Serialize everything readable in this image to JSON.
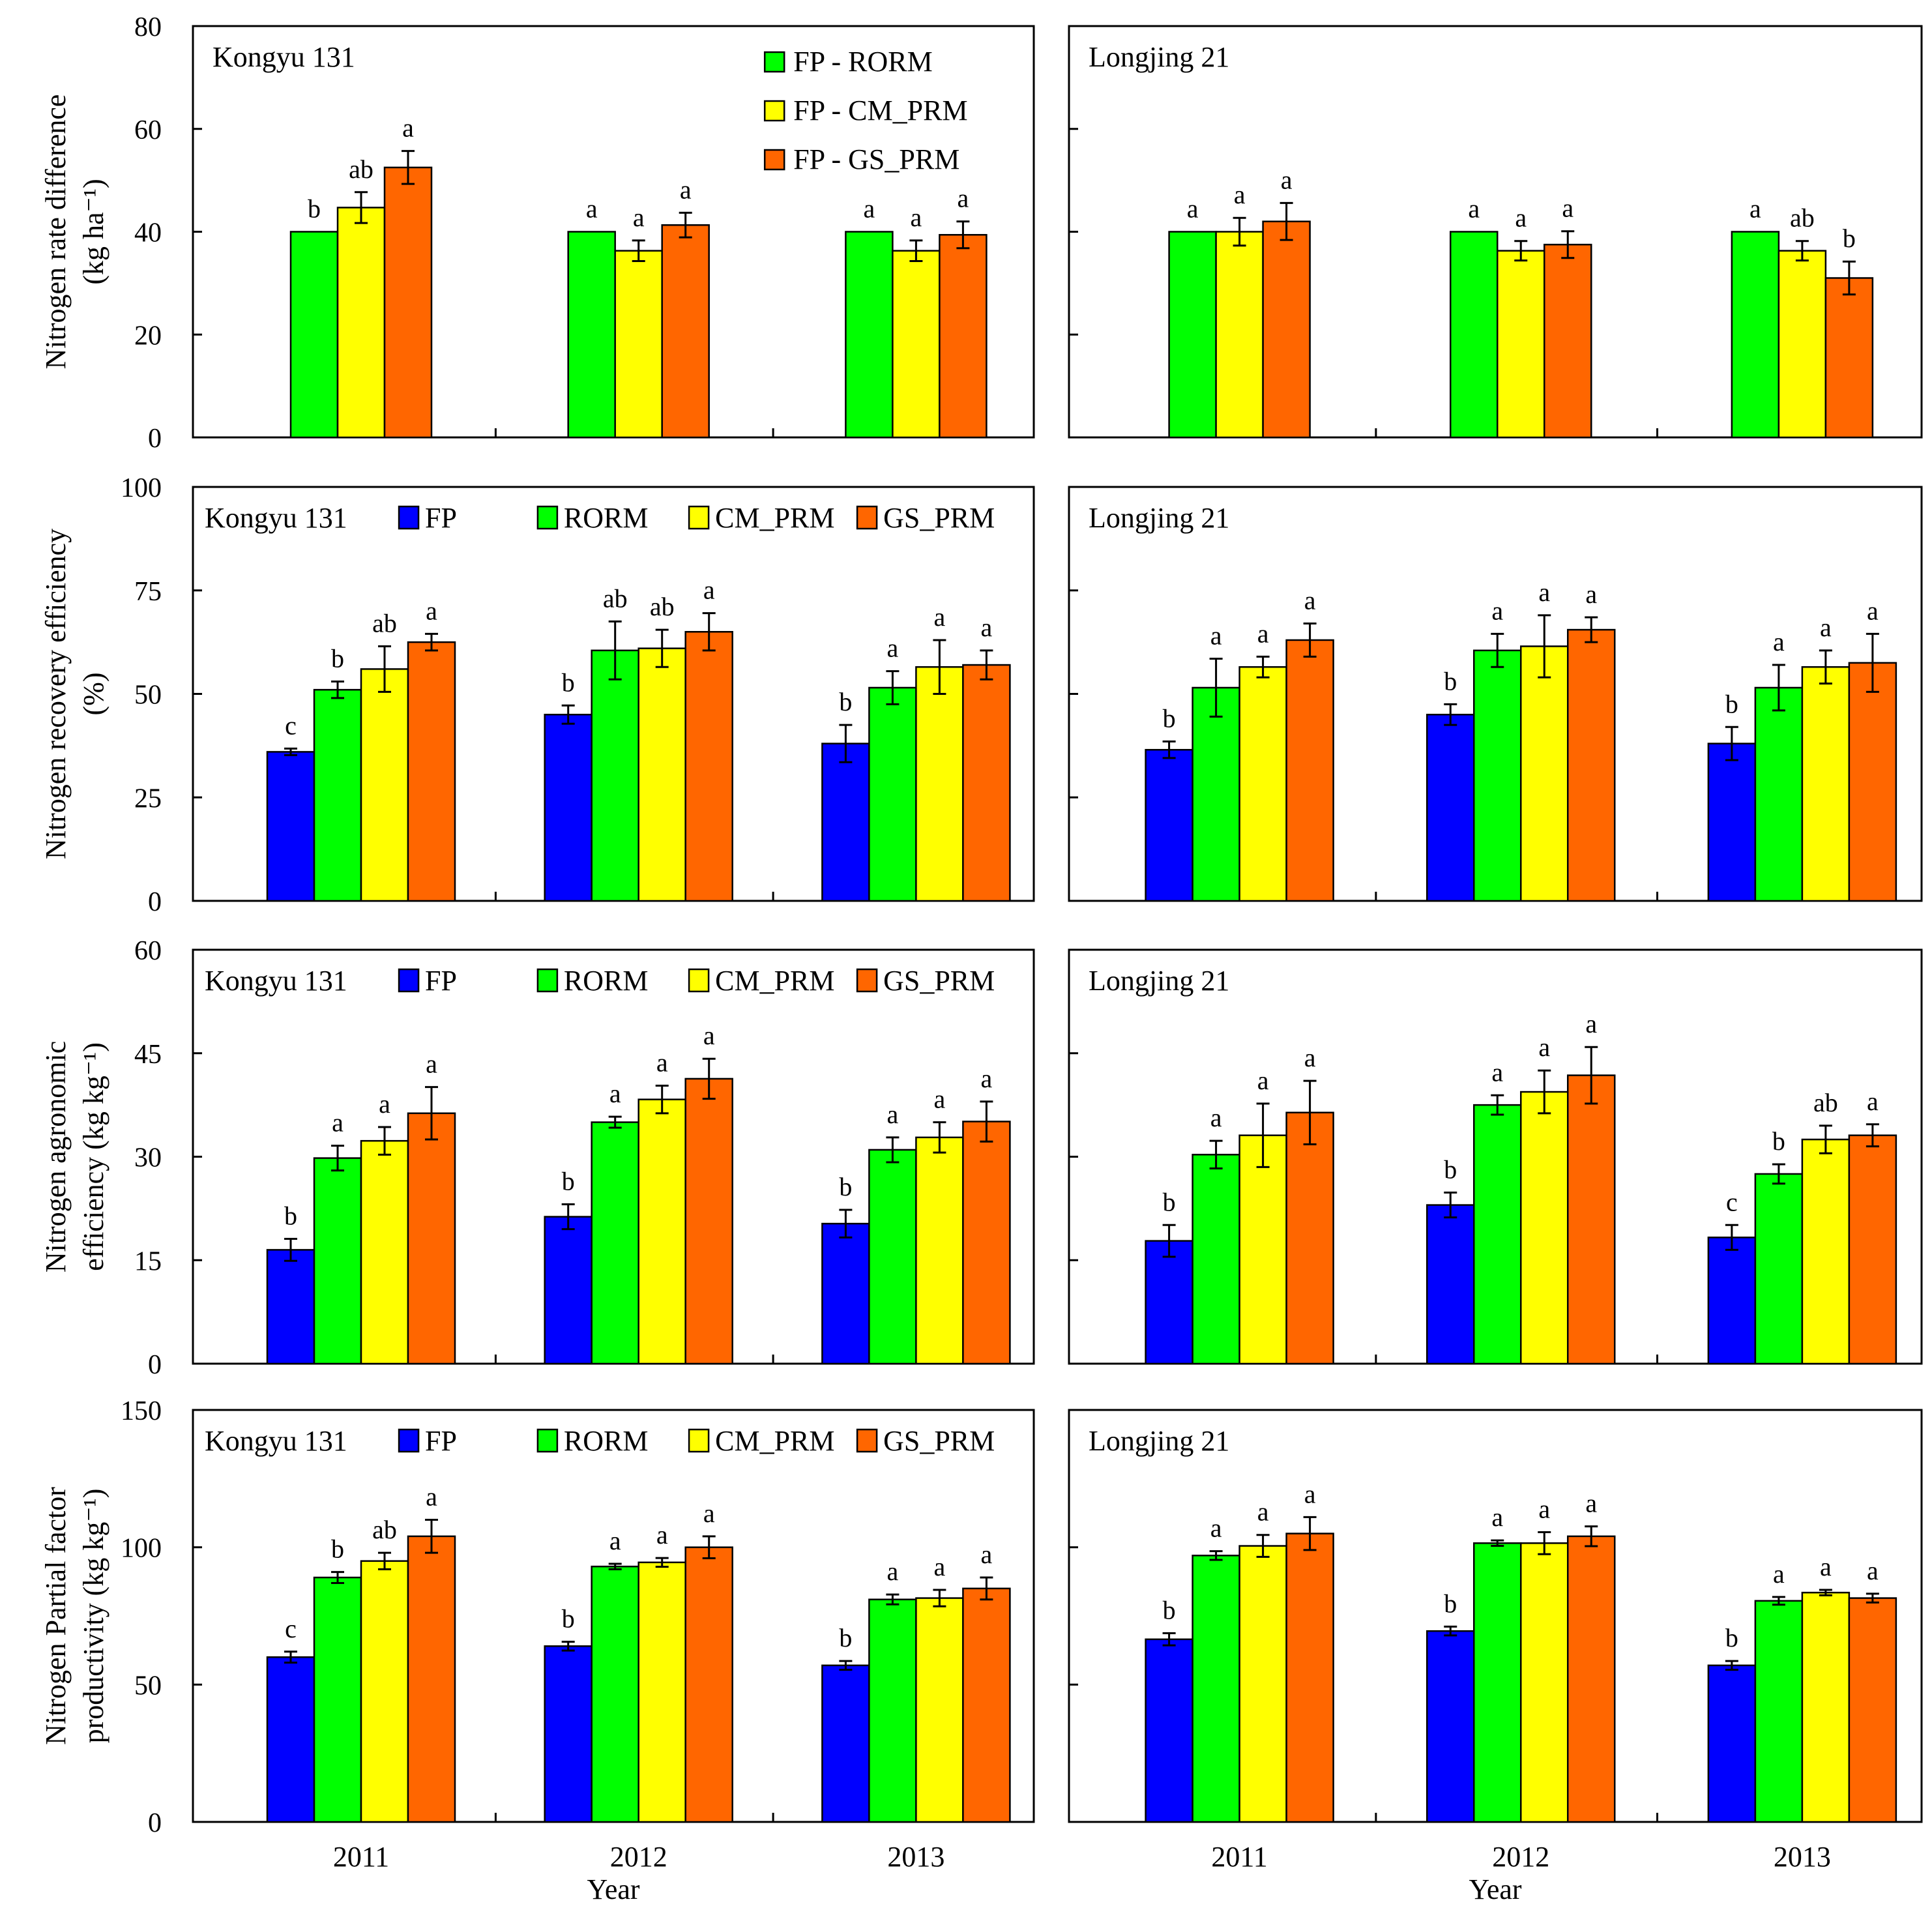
{
  "colors": {
    "FP": "#0000FF",
    "RORM": "#00FF00",
    "CM_PRM": "#FFFF00",
    "GS_PRM": "#FF6600",
    "FP - RORM": "#00FF00",
    "FP - CM_PRM": "#FFFF00",
    "FP - GS_PRM": "#FF6600"
  },
  "x_axis": {
    "ticks": [
      "2011",
      "2012",
      "2013"
    ],
    "label": "Year"
  },
  "chart_data": [
    {
      "type": "bar",
      "variety": "Kongyu 131",
      "ylim": [
        0,
        80
      ],
      "yticks": [
        0,
        20,
        40,
        60,
        80
      ],
      "show_tick_labels": true,
      "ylabel": [
        "Nitrogen rate difference",
        "(kg ha⁻¹)"
      ],
      "categories": [
        "2011",
        "2012",
        "2013"
      ],
      "series": [
        {
          "name": "FP - RORM",
          "values": [
            40,
            40,
            40
          ],
          "err": [
            0,
            0,
            0
          ],
          "sig": [
            "b",
            "a",
            "a"
          ]
        },
        {
          "name": "FP - CM_PRM",
          "values": [
            44.7,
            36.3,
            36.3
          ],
          "err": [
            3,
            2,
            2
          ],
          "sig": [
            "ab",
            "a",
            "a"
          ]
        },
        {
          "name": "FP - GS_PRM",
          "values": [
            52.5,
            41.3,
            39.4
          ],
          "err": [
            3.2,
            2.4,
            2.6
          ],
          "sig": [
            "a",
            "a",
            "a"
          ]
        }
      ],
      "legend": {
        "layout": "column",
        "entries": [
          "FP - RORM",
          "FP - CM_PRM",
          "FP - GS_PRM"
        ]
      }
    },
    {
      "type": "bar",
      "variety": "Longjing 21",
      "ylim": [
        0,
        80
      ],
      "yticks": [
        0,
        20,
        40,
        60,
        80
      ],
      "show_tick_labels": false,
      "categories": [
        "2011",
        "2012",
        "2013"
      ],
      "series": [
        {
          "name": "FP - RORM",
          "values": [
            40,
            40,
            40
          ],
          "err": [
            0,
            0,
            0
          ],
          "sig": [
            "a",
            "a",
            "a"
          ]
        },
        {
          "name": "FP - CM_PRM",
          "values": [
            40,
            36.3,
            36.3
          ],
          "err": [
            2.7,
            1.9,
            1.9
          ],
          "sig": [
            "a",
            "a",
            "ab"
          ]
        },
        {
          "name": "FP - GS_PRM",
          "values": [
            42,
            37.5,
            31
          ],
          "err": [
            3.6,
            2.6,
            3.2
          ],
          "sig": [
            "a",
            "a",
            "b"
          ]
        }
      ]
    },
    {
      "type": "bar",
      "variety": "Kongyu 131",
      "ylim": [
        0,
        100
      ],
      "yticks": [
        0,
        25,
        50,
        75,
        100
      ],
      "show_tick_labels": true,
      "ylabel": [
        "Nitrogen recovery efficiency",
        "(%)"
      ],
      "categories": [
        "2011",
        "2012",
        "2013"
      ],
      "series": [
        {
          "name": "FP",
          "values": [
            36,
            45,
            38
          ],
          "err": [
            0.8,
            2.2,
            4.5
          ],
          "sig": [
            "c",
            "b",
            "b"
          ]
        },
        {
          "name": "RORM",
          "values": [
            51,
            60.5,
            51.5
          ],
          "err": [
            2,
            7,
            4
          ],
          "sig": [
            "b",
            "ab",
            "a"
          ]
        },
        {
          "name": "CM_PRM",
          "values": [
            56,
            61,
            56.5
          ],
          "err": [
            5.5,
            4.5,
            6.5
          ],
          "sig": [
            "ab",
            "ab",
            "a"
          ]
        },
        {
          "name": "GS_PRM",
          "values": [
            62.5,
            65,
            57
          ],
          "err": [
            2,
            4.5,
            3.5
          ],
          "sig": [
            "a",
            "a",
            "a"
          ]
        }
      ],
      "legend": {
        "layout": "row",
        "entries": [
          "FP",
          "RORM",
          "CM_PRM",
          "GS_PRM"
        ]
      }
    },
    {
      "type": "bar",
      "variety": "Longjing 21",
      "ylim": [
        0,
        100
      ],
      "yticks": [
        0,
        25,
        50,
        75,
        100
      ],
      "show_tick_labels": false,
      "categories": [
        "2011",
        "2012",
        "2013"
      ],
      "series": [
        {
          "name": "FP",
          "values": [
            36.5,
            45,
            38
          ],
          "err": [
            2,
            2.5,
            4
          ],
          "sig": [
            "b",
            "b",
            "b"
          ]
        },
        {
          "name": "RORM",
          "values": [
            51.5,
            60.5,
            51.5
          ],
          "err": [
            7,
            4,
            5.5
          ],
          "sig": [
            "a",
            "a",
            "a"
          ]
        },
        {
          "name": "CM_PRM",
          "values": [
            56.5,
            61.5,
            56.5
          ],
          "err": [
            2.5,
            7.5,
            4
          ],
          "sig": [
            "a",
            "a",
            "a"
          ]
        },
        {
          "name": "GS_PRM",
          "values": [
            63,
            65.5,
            57.5
          ],
          "err": [
            4,
            3,
            7
          ],
          "sig": [
            "a",
            "a",
            "a"
          ]
        }
      ]
    },
    {
      "type": "bar",
      "variety": "Kongyu 131",
      "ylim": [
        0,
        60
      ],
      "yticks": [
        0,
        15,
        30,
        45,
        60
      ],
      "show_tick_labels": true,
      "ylabel": [
        "Nitrogen agronomic",
        "efficiency (kg kg⁻¹)"
      ],
      "categories": [
        "2011",
        "2012",
        "2013"
      ],
      "series": [
        {
          "name": "FP",
          "values": [
            16.5,
            21.3,
            20.3
          ],
          "err": [
            1.6,
            1.8,
            2
          ],
          "sig": [
            "b",
            "b",
            "b"
          ]
        },
        {
          "name": "RORM",
          "values": [
            29.8,
            35,
            31
          ],
          "err": [
            1.8,
            0.8,
            1.8
          ],
          "sig": [
            "a",
            "a",
            "a"
          ]
        },
        {
          "name": "CM_PRM",
          "values": [
            32.3,
            38.3,
            32.8
          ],
          "err": [
            2,
            2,
            2.2
          ],
          "sig": [
            "a",
            "a",
            "a"
          ]
        },
        {
          "name": "GS_PRM",
          "values": [
            36.3,
            41.3,
            35.1
          ],
          "err": [
            3.8,
            2.9,
            2.9
          ],
          "sig": [
            "a",
            "a",
            "a"
          ]
        }
      ],
      "legend": {
        "layout": "row",
        "entries": [
          "FP",
          "RORM",
          "CM_PRM",
          "GS_PRM"
        ]
      }
    },
    {
      "type": "bar",
      "variety": "Longjing 21",
      "ylim": [
        0,
        60
      ],
      "yticks": [
        0,
        15,
        30,
        45,
        60
      ],
      "show_tick_labels": false,
      "categories": [
        "2011",
        "2012",
        "2013"
      ],
      "series": [
        {
          "name": "FP",
          "values": [
            17.8,
            23,
            18.3
          ],
          "err": [
            2.3,
            1.8,
            1.8
          ],
          "sig": [
            "b",
            "b",
            "c"
          ]
        },
        {
          "name": "RORM",
          "values": [
            30.3,
            37.5,
            27.5
          ],
          "err": [
            2,
            1.4,
            1.4
          ],
          "sig": [
            "a",
            "a",
            "b"
          ]
        },
        {
          "name": "CM_PRM",
          "values": [
            33.1,
            39.4,
            32.5
          ],
          "err": [
            4.6,
            3.1,
            2
          ],
          "sig": [
            "a",
            "a",
            "ab"
          ]
        },
        {
          "name": "GS_PRM",
          "values": [
            36.4,
            41.8,
            33.1
          ],
          "err": [
            4.6,
            4.1,
            1.6
          ],
          "sig": [
            "a",
            "a",
            "a"
          ]
        }
      ]
    },
    {
      "type": "bar",
      "variety": "Kongyu 131",
      "ylim": [
        0,
        150
      ],
      "yticks": [
        0,
        50,
        100,
        150
      ],
      "show_tick_labels": true,
      "ylabel": [
        "Nitrogen Partial factor",
        "productivity (kg kg⁻¹)"
      ],
      "categories": [
        "2011",
        "2012",
        "2013"
      ],
      "series": [
        {
          "name": "FP",
          "values": [
            60,
            64,
            57
          ],
          "err": [
            2,
            1.6,
            1.6
          ],
          "sig": [
            "c",
            "b",
            "b"
          ]
        },
        {
          "name": "RORM",
          "values": [
            89,
            93,
            81
          ],
          "err": [
            2,
            1,
            1.8
          ],
          "sig": [
            "b",
            "a",
            "a"
          ]
        },
        {
          "name": "CM_PRM",
          "values": [
            95,
            94.5,
            81.5
          ],
          "err": [
            3,
            1.6,
            3
          ],
          "sig": [
            "ab",
            "a",
            "a"
          ]
        },
        {
          "name": "GS_PRM",
          "values": [
            104,
            100,
            85
          ],
          "err": [
            6,
            4,
            4
          ],
          "sig": [
            "a",
            "a",
            "a"
          ]
        }
      ],
      "legend": {
        "layout": "row",
        "entries": [
          "FP",
          "RORM",
          "CM_PRM",
          "GS_PRM"
        ]
      }
    },
    {
      "type": "bar",
      "variety": "Longjing 21",
      "ylim": [
        0,
        150
      ],
      "yticks": [
        0,
        50,
        100,
        150
      ],
      "show_tick_labels": false,
      "categories": [
        "2011",
        "2012",
        "2013"
      ],
      "series": [
        {
          "name": "FP",
          "values": [
            66.5,
            69.5,
            57
          ],
          "err": [
            2.2,
            1.6,
            1.6
          ],
          "sig": [
            "b",
            "b",
            "b"
          ]
        },
        {
          "name": "RORM",
          "values": [
            97,
            101.5,
            80.5
          ],
          "err": [
            1.6,
            1,
            1.4
          ],
          "sig": [
            "a",
            "a",
            "a"
          ]
        },
        {
          "name": "CM_PRM",
          "values": [
            100.5,
            101.5,
            83.5
          ],
          "err": [
            4,
            4,
            1
          ],
          "sig": [
            "a",
            "a",
            "a"
          ]
        },
        {
          "name": "GS_PRM",
          "values": [
            105,
            104,
            81.5
          ],
          "err": [
            6,
            3.6,
            1.6
          ],
          "sig": [
            "a",
            "a",
            "a"
          ]
        }
      ]
    }
  ]
}
